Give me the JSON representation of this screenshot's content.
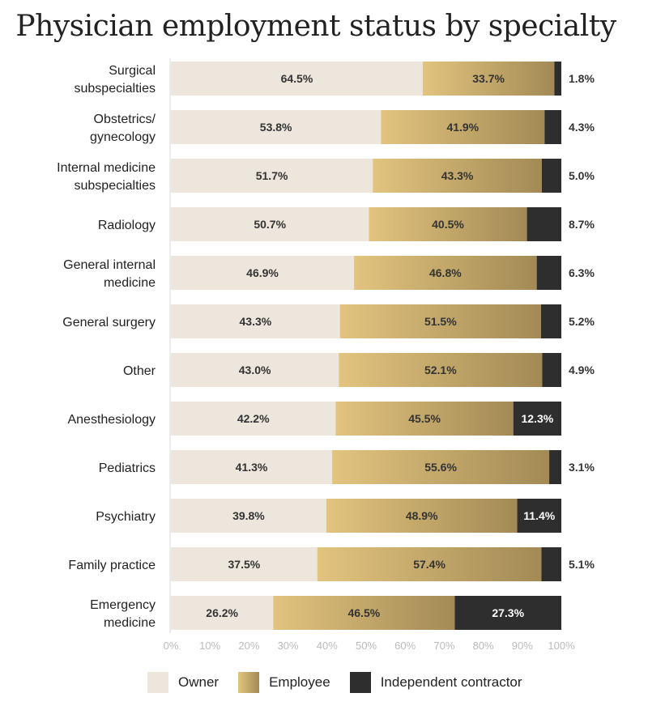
{
  "chart_data": {
    "type": "bar",
    "orientation": "horizontal",
    "stacked": true,
    "title": "Physician employment status by specialty",
    "categories": [
      "Surgical subspecialties",
      "Obstetrics/ gynecology",
      "Internal medicine subspecialties",
      "Radiology",
      "General internal medicine",
      "General surgery",
      "Other",
      "Anesthesiology",
      "Pediatrics",
      "Psychiatry",
      "Family practice",
      "Emergency medicine"
    ],
    "category_lines": [
      [
        "Surgical",
        "subspecialties"
      ],
      [
        "Obstetrics/",
        "gynecology"
      ],
      [
        "Internal medicine",
        "subspecialties"
      ],
      [
        "Radiology"
      ],
      [
        "General internal",
        "medicine"
      ],
      [
        "General surgery"
      ],
      [
        "Other"
      ],
      [
        "Anesthesiology"
      ],
      [
        "Pediatrics"
      ],
      [
        "Psychiatry"
      ],
      [
        "Family practice"
      ],
      [
        "Emergency",
        "medicine"
      ]
    ],
    "series": [
      {
        "name": "Owner",
        "values": [
          64.5,
          53.8,
          51.7,
          50.7,
          46.9,
          43.3,
          43.0,
          42.2,
          41.3,
          39.8,
          37.5,
          26.2
        ]
      },
      {
        "name": "Employee",
        "values": [
          33.7,
          41.9,
          43.3,
          40.5,
          46.8,
          51.5,
          52.1,
          45.5,
          55.6,
          48.9,
          57.4,
          46.5
        ]
      },
      {
        "name": "Independent contractor",
        "values": [
          1.8,
          4.3,
          5.0,
          8.7,
          6.3,
          5.2,
          4.9,
          12.3,
          3.1,
          11.4,
          5.1,
          27.3
        ]
      }
    ],
    "xlim": [
      0,
      100
    ],
    "x_ticks": [
      "0%",
      "10%",
      "20%",
      "30%",
      "40%",
      "50%",
      "60%",
      "70%",
      "80%",
      "90%",
      "100%"
    ],
    "value_suffix": "%",
    "legend_position": "bottom",
    "colors": {
      "owner": "#ede6dc",
      "employee_light": "#e2c47f",
      "employee_dark": "#a38a55",
      "contractor": "#2e2e2e",
      "value_text_dark": "#333333",
      "value_text_light": "#ffffff"
    }
  },
  "legend": {
    "owner": "Owner",
    "employee": "Employee",
    "contractor": "Independent contractor"
  }
}
